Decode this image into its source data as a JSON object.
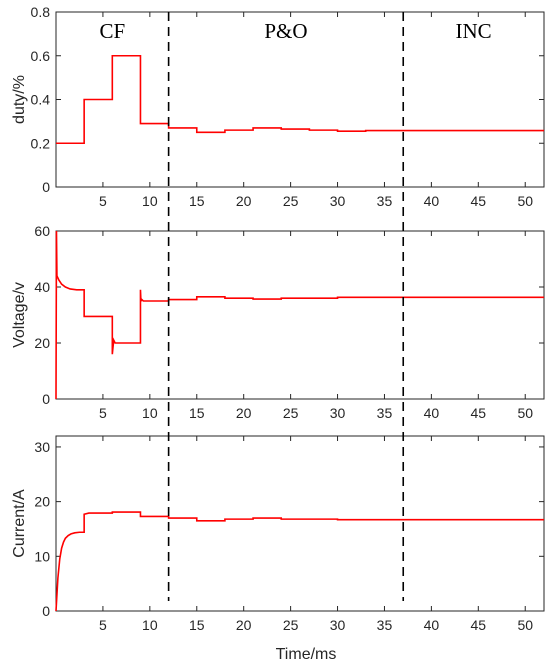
{
  "colors": {
    "series": "#ff0000",
    "axis": "#262626",
    "divider": "#000000"
  },
  "chart_data": [
    {
      "type": "line",
      "ylabel": "duty/%",
      "xlabel": "",
      "xlim": [
        0,
        52
      ],
      "ylim": [
        0,
        0.8
      ],
      "xticks": [
        5,
        10,
        15,
        20,
        25,
        30,
        35,
        40,
        45,
        50
      ],
      "yticks": [
        "0",
        "0.2",
        "0.4",
        "0.6",
        "0.8"
      ],
      "grid": false,
      "series": [
        {
          "color": "#ff0000",
          "x": [
            0,
            3,
            3,
            6,
            6,
            9,
            9,
            12,
            12,
            15,
            15,
            18,
            18,
            21,
            21,
            24,
            24,
            27,
            27,
            30,
            30,
            33,
            33,
            52
          ],
          "y": [
            0.2,
            0.2,
            0.4,
            0.4,
            0.6,
            0.6,
            0.29,
            0.29,
            0.27,
            0.27,
            0.25,
            0.25,
            0.26,
            0.26,
            0.27,
            0.27,
            0.265,
            0.265,
            0.26,
            0.26,
            0.255,
            0.255,
            0.258,
            0.258
          ]
        }
      ]
    },
    {
      "type": "line",
      "ylabel": "Voltage/v",
      "xlabel": "",
      "xlim": [
        0,
        52
      ],
      "ylim": [
        0,
        60
      ],
      "xticks": [
        5,
        10,
        15,
        20,
        25,
        30,
        35,
        40,
        45,
        50
      ],
      "yticks": [
        "0",
        "20",
        "40",
        "60"
      ],
      "grid": false,
      "series": [
        {
          "color": "#ff0000",
          "x": [
            0,
            0.05,
            0.1,
            0.3,
            0.6,
            1.0,
            1.5,
            2.2,
            3.0,
            3.0,
            6.0,
            6.0,
            6.0,
            6.15,
            6.3,
            9.0,
            9.0,
            9.05,
            9.15,
            9.3,
            12,
            12,
            15,
            15,
            18,
            18,
            21,
            21,
            24,
            24,
            30,
            30,
            52
          ],
          "y": [
            0,
            60,
            44,
            42.5,
            41,
            40,
            39.3,
            39,
            39,
            29.5,
            29.5,
            20,
            16,
            21,
            20,
            20,
            39,
            35,
            35.5,
            35,
            35,
            35.5,
            35.5,
            36.5,
            36.5,
            36,
            36,
            35.7,
            35.7,
            36,
            36,
            36.3,
            36.3
          ]
        }
      ]
    },
    {
      "type": "line",
      "ylabel": "Current/A",
      "xlabel": "Time/ms",
      "xlim": [
        0,
        52
      ],
      "ylim": [
        0,
        32
      ],
      "xticks": [
        5,
        10,
        15,
        20,
        25,
        30,
        35,
        40,
        45,
        50
      ],
      "yticks": [
        "0",
        "10",
        "20",
        "30"
      ],
      "grid": false,
      "series": [
        {
          "color": "#ff0000",
          "x": [
            0,
            0.2,
            0.4,
            0.6,
            0.8,
            1.0,
            1.3,
            1.6,
            2.0,
            2.5,
            3.0,
            3.0,
            3.5,
            6.0,
            6.0,
            9.0,
            9.0,
            12,
            12,
            15,
            15,
            18,
            18,
            21,
            21,
            24,
            24,
            30,
            30,
            52
          ],
          "y": [
            0,
            6,
            9.5,
            11.5,
            12.6,
            13.3,
            13.8,
            14.1,
            14.3,
            14.4,
            14.4,
            17.7,
            17.9,
            17.9,
            18.1,
            18.1,
            17.3,
            17.3,
            17.0,
            17.0,
            16.5,
            16.5,
            16.8,
            16.8,
            17.0,
            17.0,
            16.8,
            16.8,
            16.7,
            16.7
          ]
        }
      ]
    }
  ],
  "dividers": {
    "x": [
      12,
      37
    ],
    "regions": [
      {
        "label": "CF",
        "x": 6
      },
      {
        "label": "P&O",
        "x": 24.5
      },
      {
        "label": "INC",
        "x": 44.5
      }
    ]
  }
}
